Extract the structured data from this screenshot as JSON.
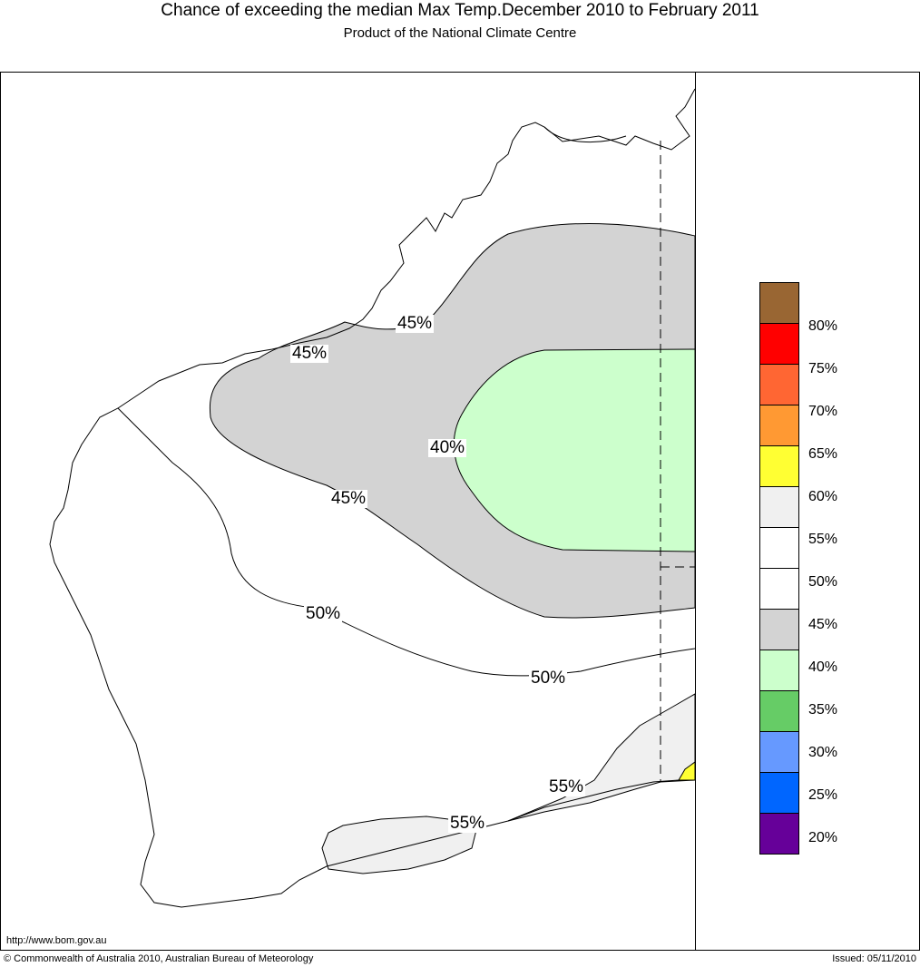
{
  "header": {
    "title": "Chance of exceeding the median Max Temp.December 2010 to February 2011",
    "subtitle": "Product of the National Climate Centre"
  },
  "map": {
    "contour_labels": [
      "45%",
      "45%",
      "40%",
      "45%",
      "50%",
      "50%",
      "55%",
      "55%"
    ]
  },
  "legend": {
    "colors": [
      "#996633",
      "#ff0000",
      "#ff6633",
      "#ff9933",
      "#ffff33",
      "#f0f0f0",
      "#ffffff",
      "#ffffff",
      "#d3d3d3",
      "#ccffcc",
      "#66cc66",
      "#6699ff",
      "#0066ff",
      "#660099"
    ],
    "labels": [
      "80%",
      "75%",
      "70%",
      "65%",
      "60%",
      "55%",
      "50%",
      "45%",
      "40%",
      "35%",
      "30%",
      "25%",
      "20%"
    ]
  },
  "footer": {
    "url": "http://www.bom.gov.au",
    "copyright": "© Commonwealth of Australia 2010, Australian Bureau of Meteorology",
    "issued": "Issued: 05/11/2010"
  }
}
